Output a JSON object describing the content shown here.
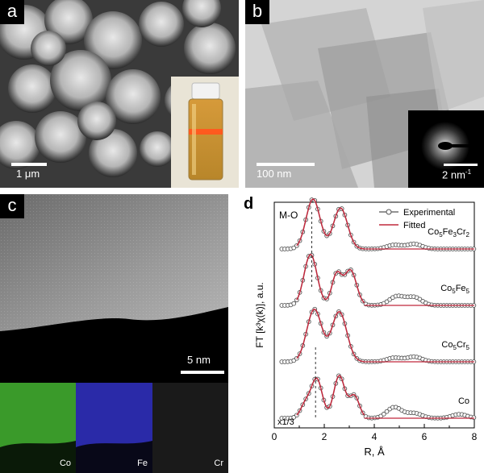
{
  "panels": {
    "a": {
      "label": "a",
      "scale": "1 μm"
    },
    "b": {
      "label": "b",
      "scale": "100 nm",
      "inset_scale": "2 nm",
      "inset_scale_sup": "-1"
    },
    "c": {
      "label": "c",
      "scale": "5 nm",
      "maps": [
        "Co",
        "Fe",
        "Cr"
      ]
    },
    "d": {
      "label": "d"
    }
  },
  "chart_data": {
    "type": "line",
    "xlabel": "R, Å",
    "ylabel": "FT [k³χ(k)], a.u.",
    "xlim": [
      0,
      8
    ],
    "x_ticks": [
      "0",
      "2",
      "4",
      "6",
      "8"
    ],
    "legend": [
      "Experimental",
      "Fitted"
    ],
    "legend_position": "top-right",
    "annotation_top": "M-O",
    "annotation_scale": "x1/3",
    "colors": {
      "experimental": "#555555",
      "fitted": "#c0283c"
    },
    "series": [
      {
        "name": "Co5Fe3Cr2",
        "baseline": 3,
        "peaks": [
          [
            1.55,
            1.0,
            0.28
          ],
          [
            2.65,
            0.82,
            0.28
          ],
          [
            4.8,
            0.08,
            0.3
          ],
          [
            5.6,
            0.1,
            0.3
          ]
        ]
      },
      {
        "name": "Co5Fe5",
        "baseline": 2,
        "peaks": [
          [
            1.45,
            1.02,
            0.26
          ],
          [
            2.5,
            0.62,
            0.2
          ],
          [
            3.05,
            0.7,
            0.24
          ],
          [
            4.9,
            0.18,
            0.3
          ],
          [
            5.6,
            0.16,
            0.3
          ]
        ]
      },
      {
        "name": "Co5Cr5",
        "baseline": 1,
        "peaks": [
          [
            1.6,
            1.05,
            0.3
          ],
          [
            2.6,
            1.0,
            0.3
          ],
          [
            4.8,
            0.08,
            0.3
          ],
          [
            5.6,
            0.1,
            0.3
          ]
        ]
      },
      {
        "name": "Co",
        "baseline": 0,
        "peaks": [
          [
            1.25,
            0.28,
            0.2
          ],
          [
            1.7,
            0.78,
            0.22
          ],
          [
            2.6,
            0.85,
            0.22
          ],
          [
            3.2,
            0.45,
            0.2
          ],
          [
            4.8,
            0.22,
            0.3
          ],
          [
            5.6,
            0.1,
            0.3
          ],
          [
            7.4,
            0.08,
            0.3
          ]
        ]
      }
    ]
  }
}
